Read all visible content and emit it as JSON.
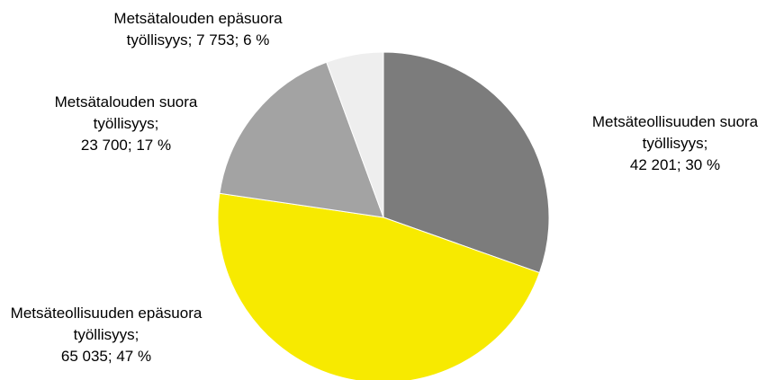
{
  "chart_data": {
    "type": "pie",
    "categories": [
      "Metsäteollisuuden suora työllisyys;",
      "Metsäteollisuuden epäsuora työllisyys;",
      "Metsätalouden suora työllisyys;",
      "Metsätalouden epäsuora työllisyys;"
    ],
    "values": [
      42201,
      65035,
      23700,
      7753
    ],
    "value_labels": [
      "42 201; 30 %",
      "65 035; 47 %",
      "23 700; 17 %",
      "7 753; 6 %"
    ],
    "colors": [
      "#7c7c7c",
      "#f7ea00",
      "#a3a3a3",
      "#eeeeee"
    ]
  }
}
